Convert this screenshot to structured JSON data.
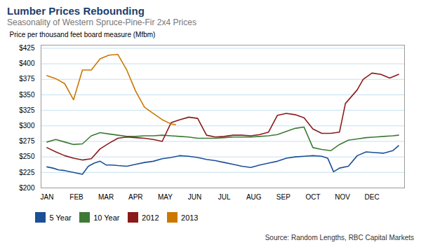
{
  "chart_data": {
    "type": "line",
    "title": "Lumber Prices Rebounding",
    "subtitle": "Seasonality of Western Spruce-Pine-Fir 2x4 Prices",
    "ylabel": "Price per thousand feet board measure (Mfbm)",
    "caption": "Source: Random Lengths, RBC Capital Markets",
    "xlim": [
      -0.2,
      12.1
    ],
    "xticks": [
      {
        "value": 0,
        "label": "JAN"
      },
      {
        "value": 1,
        "label": "FEB"
      },
      {
        "value": 2,
        "label": "MAR"
      },
      {
        "value": 3,
        "label": "APR"
      },
      {
        "value": 4,
        "label": "MAY"
      },
      {
        "value": 5,
        "label": "JUN"
      },
      {
        "value": 6,
        "label": "JUL"
      },
      {
        "value": 7,
        "label": "AUG"
      },
      {
        "value": 8,
        "label": "SEP"
      },
      {
        "value": 9,
        "label": "OCT"
      },
      {
        "value": 10,
        "label": "NOV"
      },
      {
        "value": 11,
        "label": "DEC"
      }
    ],
    "ylim": [
      200,
      430
    ],
    "yticks": [
      {
        "value": 200,
        "label": "$200"
      },
      {
        "value": 225,
        "label": "$225"
      },
      {
        "value": 250,
        "label": "$250"
      },
      {
        "value": 275,
        "label": "$275"
      },
      {
        "value": 300,
        "label": "$300"
      },
      {
        "value": 325,
        "label": "$325"
      },
      {
        "value": 350,
        "label": "$350"
      },
      {
        "value": 375,
        "label": "$375"
      },
      {
        "value": 400,
        "label": "$400"
      },
      {
        "value": 425,
        "label": "$425"
      }
    ],
    "grid": true,
    "legend": "lower left",
    "series": [
      {
        "name": "5 Year",
        "color": "#1c4f96",
        "x": [
          0,
          0.2,
          0.4,
          0.6,
          0.8,
          1,
          1.2,
          1.4,
          1.6,
          1.8,
          2,
          2.2,
          2.4,
          2.7,
          3,
          3.3,
          3.6,
          3.9,
          4.2,
          4.5,
          4.8,
          5.1,
          5.4,
          5.7,
          6,
          6.3,
          6.6,
          6.9,
          7.2,
          7.5,
          7.8,
          8.1,
          8.4,
          8.7,
          9,
          9.3,
          9.5,
          9.7,
          9.9,
          10.2,
          10.5,
          10.8,
          11.1,
          11.4,
          11.7,
          11.9
        ],
        "values": [
          234,
          232,
          229,
          228,
          226,
          224,
          222,
          235,
          240,
          243,
          237,
          237,
          236,
          235,
          238,
          241,
          243,
          247,
          249,
          252,
          251,
          249,
          246,
          244,
          241,
          238,
          235,
          233,
          237,
          240,
          243,
          248,
          250,
          251,
          252,
          251,
          248,
          226,
          232,
          235,
          252,
          258,
          257,
          256,
          260,
          268
        ]
      },
      {
        "name": "10 Year",
        "color": "#3d7a35",
        "x": [
          0,
          0.3,
          0.6,
          0.9,
          1.2,
          1.5,
          1.8,
          2.1,
          2.4,
          2.7,
          3.0,
          3.3,
          3.6,
          3.9,
          4.2,
          4.5,
          4.8,
          5.1,
          5.4,
          5.7,
          6.0,
          6.3,
          6.6,
          6.9,
          7.2,
          7.5,
          7.8,
          8.1,
          8.4,
          8.7,
          9.0,
          9.3,
          9.6,
          9.9,
          10.2,
          10.5,
          10.8,
          11.1,
          11.4,
          11.7,
          11.9
        ],
        "values": [
          274,
          278,
          274,
          270,
          271,
          284,
          289,
          287,
          285,
          283,
          283,
          284,
          284,
          285,
          284,
          283,
          282,
          280,
          280,
          280,
          281,
          282,
          282,
          282,
          283,
          284,
          286,
          291,
          296,
          298,
          265,
          262,
          260,
          270,
          277,
          279,
          281,
          282,
          283,
          284,
          285
        ]
      },
      {
        "name": "2012",
        "color": "#8b1a1a",
        "x": [
          0,
          0.3,
          0.6,
          0.9,
          1.2,
          1.5,
          1.8,
          2.1,
          2.4,
          2.7,
          3.0,
          3.3,
          3.6,
          3.9,
          4.2,
          4.5,
          4.8,
          5.1,
          5.4,
          5.7,
          6.0,
          6.3,
          6.6,
          6.9,
          7.2,
          7.5,
          7.8,
          8.1,
          8.4,
          8.7,
          9.0,
          9.3,
          9.6,
          9.9,
          10.1,
          10.3,
          10.5,
          10.7,
          11.0,
          11.3,
          11.6,
          11.9
        ],
        "values": [
          265,
          258,
          252,
          248,
          245,
          247,
          263,
          272,
          280,
          282,
          281,
          280,
          278,
          275,
          305,
          310,
          314,
          312,
          285,
          282,
          283,
          285,
          285,
          284,
          286,
          290,
          317,
          320,
          318,
          313,
          295,
          288,
          288,
          290,
          336,
          347,
          358,
          375,
          385,
          383,
          377,
          383
        ]
      },
      {
        "name": "2013",
        "color": "#cc7700",
        "x": [
          0,
          0.3,
          0.6,
          0.9,
          1.2,
          1.5,
          1.8,
          2.1,
          2.4,
          2.7,
          3.0,
          3.3,
          3.6,
          3.9,
          4.2,
          4.35
        ],
        "values": [
          381,
          376,
          368,
          342,
          390,
          390,
          408,
          414,
          415,
          390,
          356,
          330,
          320,
          310,
          303,
          302
        ]
      }
    ]
  }
}
